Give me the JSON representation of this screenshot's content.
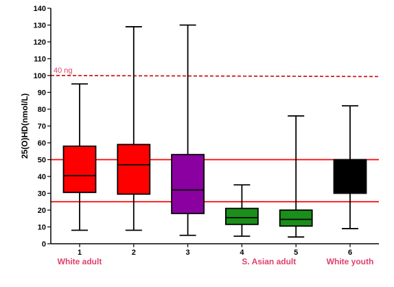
{
  "chart_data": {
    "type": "box",
    "ylabel": "25(O)HD(nmol/L)",
    "ylim": [
      0,
      140
    ],
    "yticks": [
      0,
      10,
      20,
      30,
      40,
      50,
      60,
      70,
      80,
      90,
      100,
      110,
      120,
      130,
      140
    ],
    "categories": [
      "1",
      "2",
      "3",
      "4",
      "5",
      "6"
    ],
    "boxes": [
      {
        "category": "1",
        "min": 8,
        "q1": 30.5,
        "median": 40.5,
        "q3": 58,
        "max": 95,
        "color": "#ff0000"
      },
      {
        "category": "2",
        "min": 8,
        "q1": 29.5,
        "median": 47,
        "q3": 59,
        "max": 129,
        "color": "#ff0000"
      },
      {
        "category": "3",
        "min": 5,
        "q1": 18,
        "median": 32,
        "q3": 53,
        "max": 130,
        "color": "#8b00a0"
      },
      {
        "category": "4",
        "min": 4.5,
        "q1": 11.5,
        "median": 15.5,
        "q3": 21,
        "max": 35,
        "color": "#1a8f1a"
      },
      {
        "category": "5",
        "min": 4,
        "q1": 10.5,
        "median": 14.5,
        "q3": 20,
        "max": 76,
        "color": "#1a8f1a"
      },
      {
        "category": "6",
        "min": 9,
        "q1": 30,
        "median": 49.5,
        "q3": 50,
        "max": 82,
        "color": "#000000"
      }
    ],
    "reference_lines": [
      {
        "y": 100,
        "style": "dashed",
        "color": "#cc0000",
        "label": "40 ng"
      },
      {
        "y": 50,
        "style": "solid",
        "color": "#ff0000",
        "label": ""
      },
      {
        "y": 25,
        "style": "solid",
        "color": "#ff0000",
        "label": ""
      }
    ],
    "group_labels": [
      {
        "text": "White adult",
        "category": "1"
      },
      {
        "text": "S. Asian adult",
        "category": "4.5"
      },
      {
        "text": "White youth",
        "category": "6"
      }
    ]
  }
}
